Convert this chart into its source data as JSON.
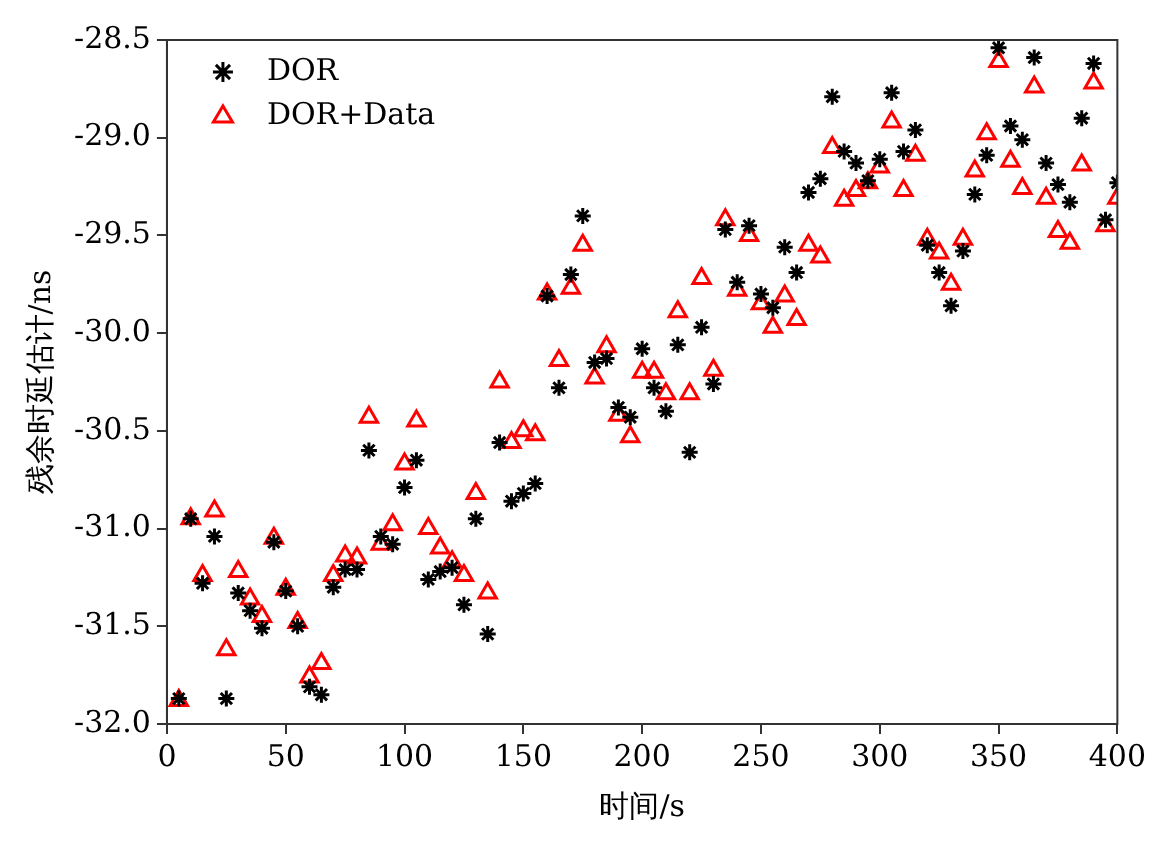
{
  "chart_data": {
    "type": "scatter",
    "xlabel": "时间/s",
    "ylabel": "残余时延估计/ns",
    "x": [
      5,
      10,
      15,
      20,
      25,
      30,
      35,
      40,
      45,
      50,
      55,
      60,
      65,
      70,
      75,
      80,
      85,
      90,
      95,
      100,
      105,
      110,
      115,
      120,
      125,
      130,
      135,
      140,
      145,
      150,
      155,
      160,
      165,
      170,
      175,
      180,
      185,
      190,
      195,
      200,
      205,
      210,
      215,
      220,
      225,
      230,
      235,
      240,
      245,
      250,
      255,
      260,
      265,
      270,
      275,
      280,
      285,
      290,
      295,
      300,
      305,
      310,
      315,
      320,
      325,
      330,
      335,
      340,
      345,
      350,
      355,
      360,
      365,
      370,
      375,
      380,
      385,
      390,
      395,
      400
    ],
    "series": [
      {
        "name": "DOR",
        "color": "#000000",
        "marker": "cross",
        "values": [
          -31.87,
          -30.95,
          -31.28,
          -31.04,
          -31.87,
          -31.33,
          -31.42,
          -31.51,
          -31.07,
          -31.32,
          -31.5,
          -31.81,
          -31.85,
          -31.3,
          -31.21,
          -31.21,
          -30.6,
          -31.04,
          -31.08,
          -30.79,
          -30.65,
          -31.26,
          -31.22,
          -31.2,
          -31.39,
          -30.95,
          -31.54,
          -30.56,
          -30.86,
          -30.82,
          -30.77,
          -29.81,
          -30.28,
          -29.7,
          -29.4,
          -30.15,
          -30.13,
          -30.38,
          -30.43,
          -30.08,
          -30.28,
          -30.4,
          -30.06,
          -30.61,
          -29.97,
          -30.26,
          -29.47,
          -29.74,
          -29.45,
          -29.8,
          -29.87,
          -29.56,
          -29.69,
          -29.28,
          -29.21,
          -28.79,
          -29.07,
          -29.13,
          -29.22,
          -29.11,
          -28.77,
          -29.07,
          -28.96,
          -29.55,
          -29.69,
          -29.86,
          -29.58,
          -29.29,
          -29.09,
          -28.54,
          -28.94,
          -29.01,
          -28.59,
          -29.13,
          -29.24,
          -29.33,
          -28.9,
          -28.62,
          -29.42,
          -29.23
        ]
      },
      {
        "name": "DOR+Data",
        "color": "#ff0000",
        "marker": "triangle",
        "values": [
          -31.88,
          -30.95,
          -31.24,
          -30.91,
          -31.62,
          -31.22,
          -31.36,
          -31.45,
          -31.05,
          -31.31,
          -31.48,
          -31.76,
          -31.69,
          -31.24,
          -31.14,
          -31.15,
          -30.43,
          -31.08,
          -30.98,
          -30.67,
          -30.45,
          -31.0,
          -31.1,
          -31.17,
          -31.24,
          -30.82,
          -31.33,
          -30.25,
          -30.56,
          -30.5,
          -30.52,
          -29.8,
          -30.14,
          -29.77,
          -29.55,
          -30.23,
          -30.07,
          -30.42,
          -30.53,
          -30.2,
          -30.2,
          -30.31,
          -29.89,
          -30.31,
          -29.72,
          -30.19,
          -29.42,
          -29.78,
          -29.5,
          -29.85,
          -29.97,
          -29.81,
          -29.93,
          -29.55,
          -29.61,
          -29.05,
          -29.32,
          -29.27,
          -29.23,
          -29.15,
          -28.92,
          -29.27,
          -29.09,
          -29.52,
          -29.59,
          -29.75,
          -29.52,
          -29.17,
          -28.98,
          -28.61,
          -29.12,
          -29.26,
          -28.74,
          -29.31,
          -29.48,
          -29.54,
          -29.14,
          -28.72,
          -29.45,
          -29.31
        ]
      }
    ],
    "xlim": [
      0,
      400
    ],
    "xticks": [
      0,
      50,
      100,
      150,
      200,
      250,
      300,
      350,
      400
    ],
    "ylim": [
      -32,
      -28.5
    ],
    "yticks": [
      {
        "value": -32,
        "label": "-32.0"
      },
      -31.5,
      {
        "value": -31,
        "label": "-31.0"
      },
      -30.5,
      {
        "value": -30,
        "label": "-30.0"
      },
      -29.5,
      {
        "value": -29,
        "label": "-29.0"
      },
      -28.5
    ],
    "grid": false,
    "legend": "top left"
  }
}
